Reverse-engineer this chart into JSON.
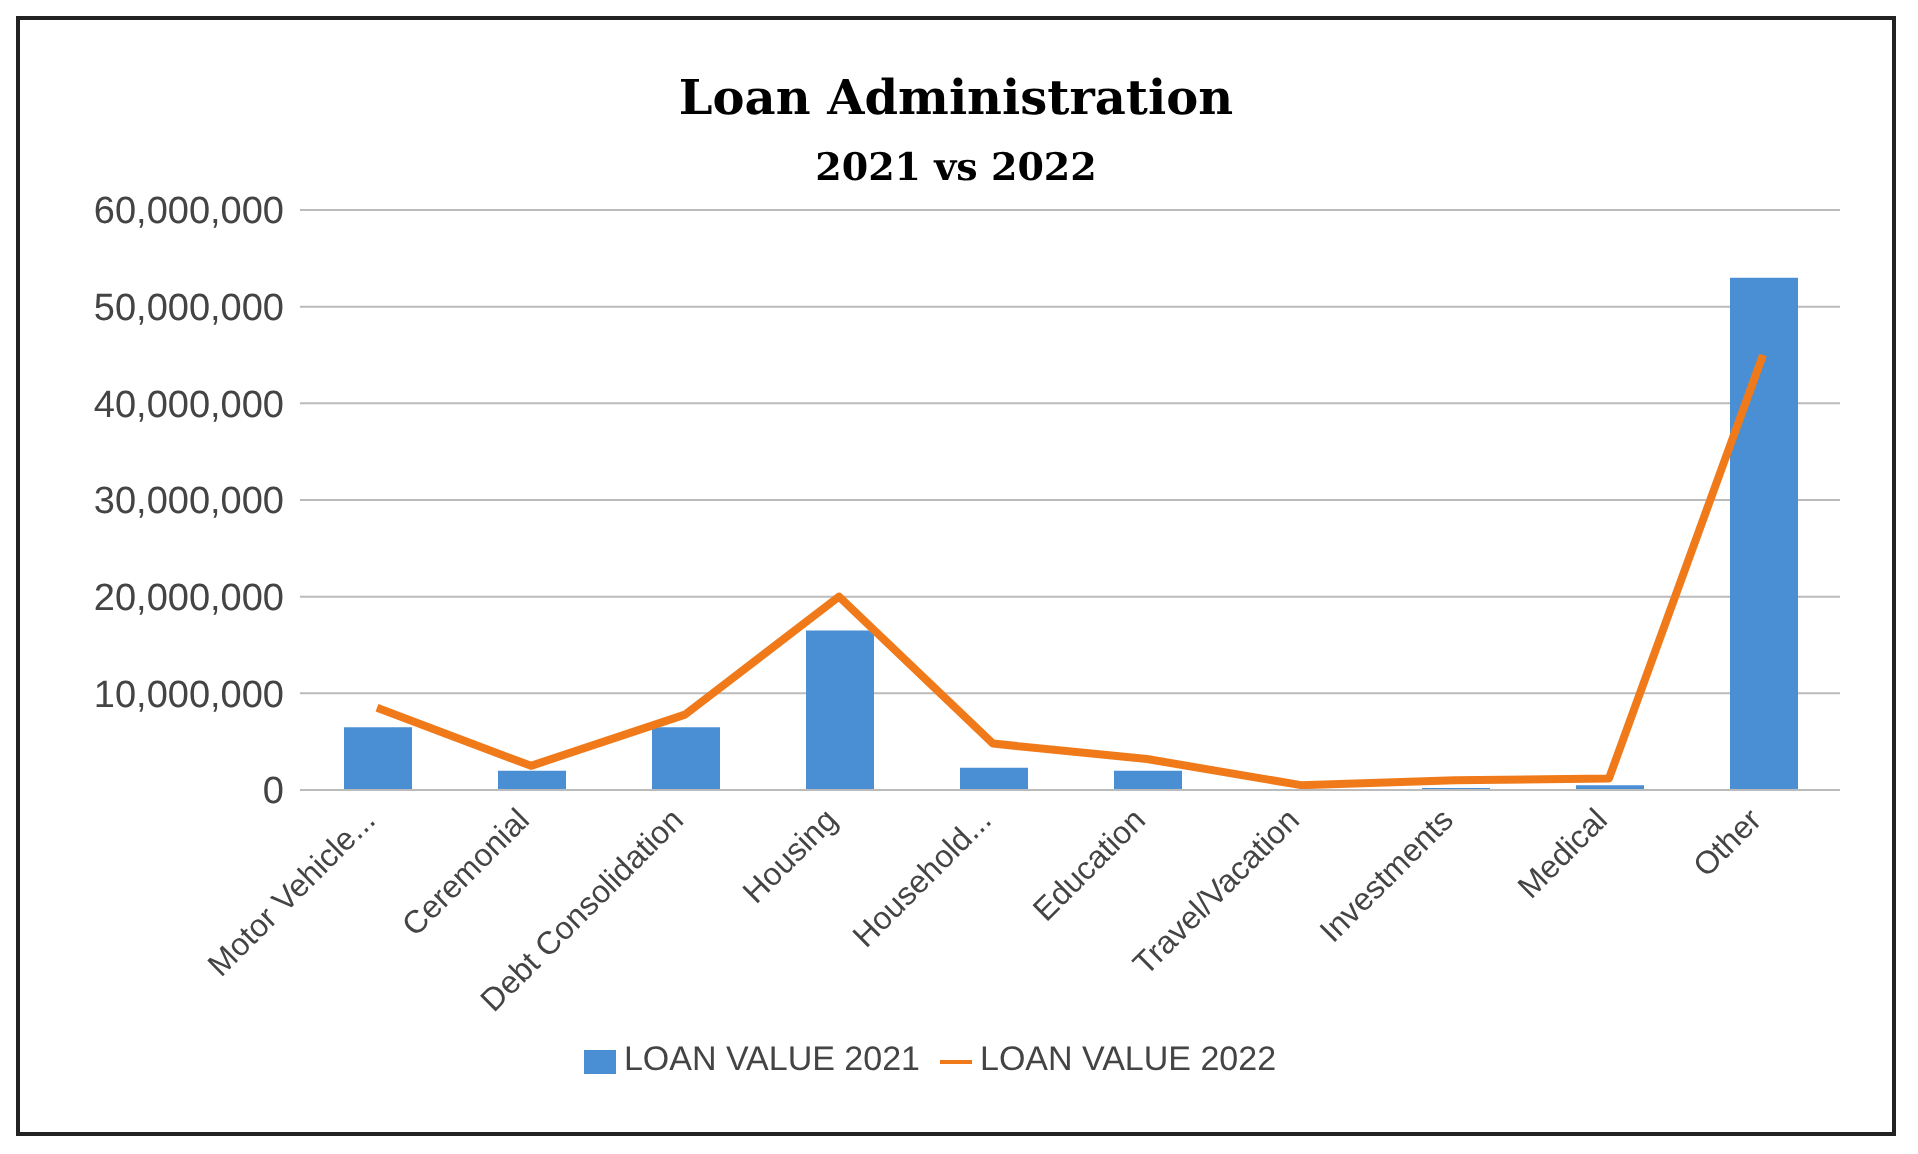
{
  "chart_data": {
    "type": "bar",
    "title": "Loan Administration",
    "subtitle": "2021 vs 2022",
    "categories": [
      "Motor Vehicle...",
      "Ceremonial",
      "Debt Consolidation",
      "Housing",
      "Household...",
      "Education",
      "Travel/Vacation",
      "Investments",
      "Medical",
      "Other"
    ],
    "series": [
      {
        "name": "LOAN VALUE 2021",
        "color": "#4a8fd4",
        "values": [
          6500000,
          2000000,
          6500000,
          16500000,
          2300000,
          2000000,
          null,
          200000,
          500000,
          53000000
        ]
      },
      {
        "name": "LOAN VALUE 2022",
        "type": "line",
        "color": "#f07a1a",
        "values": [
          8500000,
          2500000,
          7800000,
          20000000,
          4800000,
          3200000,
          500000,
          1000000,
          1200000,
          45000000
        ]
      }
    ],
    "ylim": [
      0,
      60000000
    ],
    "yticks": [
      0,
      {
        "value": 10000000,
        "label": "10,000,000"
      },
      {
        "value": 20000000,
        "label": "20,000,000"
      },
      {
        "value": 30000000,
        "label": "30,000,000"
      },
      {
        "value": 40000000,
        "label": "40,000,000"
      },
      {
        "value": 50000000,
        "label": "50,000,000"
      },
      {
        "value": 60000000,
        "label": "60,000,000"
      }
    ],
    "grid": "y",
    "legend": "bottom",
    "marker": "none",
    "line_style": "solid"
  }
}
